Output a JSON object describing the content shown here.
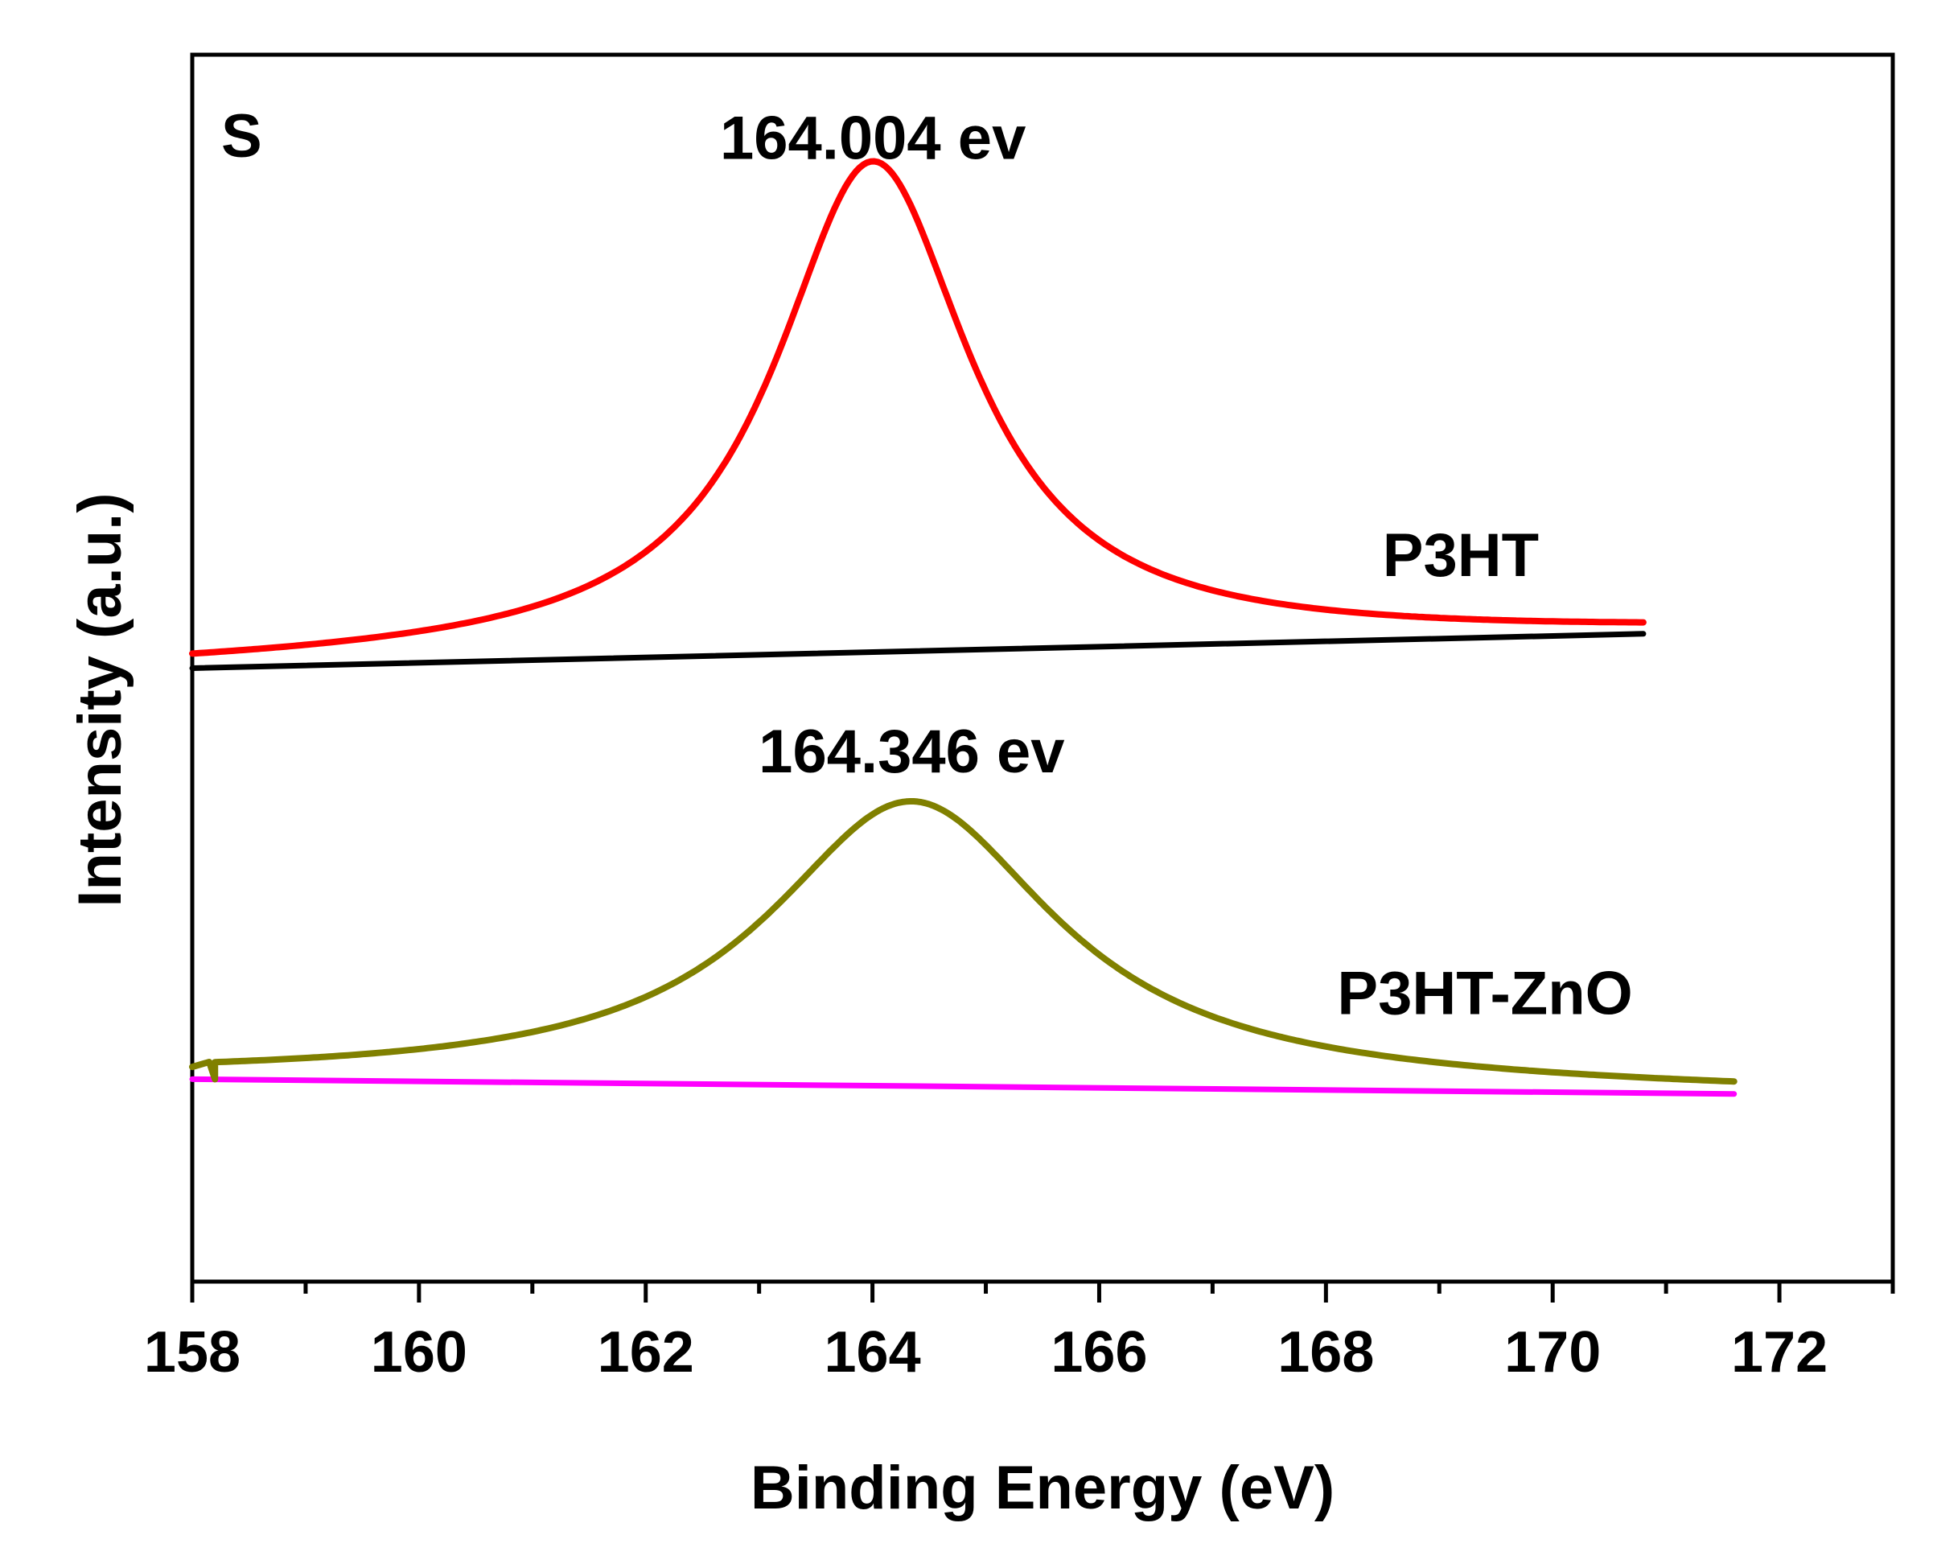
{
  "chart_data": {
    "type": "line",
    "title": "",
    "panel_label": "S",
    "xlabel": "Binding Energy (eV)",
    "ylabel": "Intensity (a.u.)",
    "xlim": [
      158,
      173
    ],
    "ylim": [
      0,
      100
    ],
    "x_major_ticks": [
      158,
      160,
      162,
      164,
      166,
      168,
      170,
      172
    ],
    "x_minor_ticks": [
      159,
      161,
      163,
      165,
      167,
      169,
      171,
      173
    ],
    "x_tick_labels": [
      "158",
      "160",
      "162",
      "164",
      "166",
      "168",
      "170",
      "172"
    ],
    "y_ticks_shown": false,
    "grid": false,
    "series": [
      {
        "name": "P3HT",
        "role": "spectrum",
        "color": "#ff0000",
        "baseline": {
          "x_start": 158,
          "y_start": 50.0,
          "x_end": 170.8,
          "y_end": 52.8
        },
        "peak_center": 164.004,
        "peak_height": 40.0,
        "peak_fwhm": 2.1,
        "x_range": [
          158,
          170.8
        ]
      },
      {
        "name": "P3HT baseline",
        "role": "baseline",
        "color": "#000000",
        "points": [
          [
            158,
            50.0
          ],
          [
            170.8,
            52.8
          ]
        ]
      },
      {
        "name": "P3HT-ZnO",
        "role": "spectrum",
        "color": "#808000",
        "baseline": {
          "x_start": 158.2,
          "y_start": 16.5,
          "x_end": 171.6,
          "y_end": 15.3
        },
        "peak_center": 164.346,
        "peak_height": 23.2,
        "peak_fwhm": 3.1,
        "artifact": [
          [
            158,
            17.5
          ],
          [
            158.15,
            17.9
          ],
          [
            158.2,
            16.5
          ]
        ],
        "x_range": [
          158,
          171.6
        ]
      },
      {
        "name": "P3HT-ZnO baseline",
        "role": "baseline",
        "color": "#ff00ff",
        "points": [
          [
            158,
            16.5
          ],
          [
            171.6,
            15.3
          ]
        ]
      }
    ],
    "annotations": [
      {
        "text": "164.004 ev",
        "x": 164.004,
        "y": 91.5
      },
      {
        "text": "164.346 ev",
        "x": 164.346,
        "y": 41.5
      }
    ],
    "series_labels": [
      {
        "text": "P3HT",
        "x": 168.5,
        "y": 57.5
      },
      {
        "text": "P3HT-ZnO",
        "x": 168.1,
        "y": 21.8
      }
    ]
  }
}
